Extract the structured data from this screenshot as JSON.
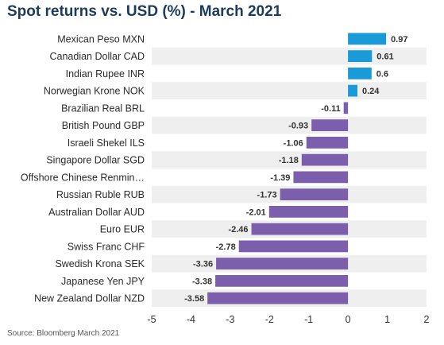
{
  "title": "Spot returns vs. USD (%) - March 2021",
  "source": "Source: Bloomberg March 2021",
  "colors": {
    "positive": "#1a9ad6",
    "negative": "#7b5fad",
    "band": "#efefef"
  },
  "chart_data": {
    "type": "bar",
    "orientation": "horizontal",
    "title": "Spot returns vs. USD (%) - March 2021",
    "categories": [
      "Mexican Peso MXN",
      "Canadian Dollar CAD",
      "Indian Rupee INR",
      "Norwegian Krone NOK",
      "Brazilian Real BRL",
      "British Pound GBP",
      "Israeli Shekel ILS",
      "Singapore Dollar SGD",
      "Offshore Chinese Renmin…",
      "Russian Ruble RUB",
      "Australian Dollar AUD",
      "Euro EUR",
      "Swiss Franc CHF",
      "Swedish Krona SEK",
      "Japanese Yen JPY",
      "New Zealand Dollar NZD"
    ],
    "values": [
      0.97,
      0.61,
      0.6,
      0.24,
      -0.11,
      -0.93,
      -1.06,
      -1.18,
      -1.39,
      -1.73,
      -2.01,
      -2.46,
      -2.78,
      -3.36,
      -3.38,
      -3.58
    ],
    "value_labels": [
      "0.97",
      "0.61",
      "0.6",
      "0.24",
      "-0.11",
      "-0.93",
      "-1.06",
      "-1.18",
      "-1.39",
      "-1.73",
      "-2.01",
      "-2.46",
      "-2.78",
      "-3.36",
      "-3.38",
      "-3.58"
    ],
    "xlim": [
      -5,
      2
    ],
    "xticks": [
      -5,
      -4,
      -3,
      -2,
      -1,
      0,
      1,
      2
    ],
    "xtick_labels": [
      "-5",
      "-4",
      "-3",
      "-2",
      "-1",
      "0",
      "1",
      "2"
    ],
    "grid": false,
    "alternating_row_bands": true,
    "xlabel": "",
    "ylabel": ""
  }
}
